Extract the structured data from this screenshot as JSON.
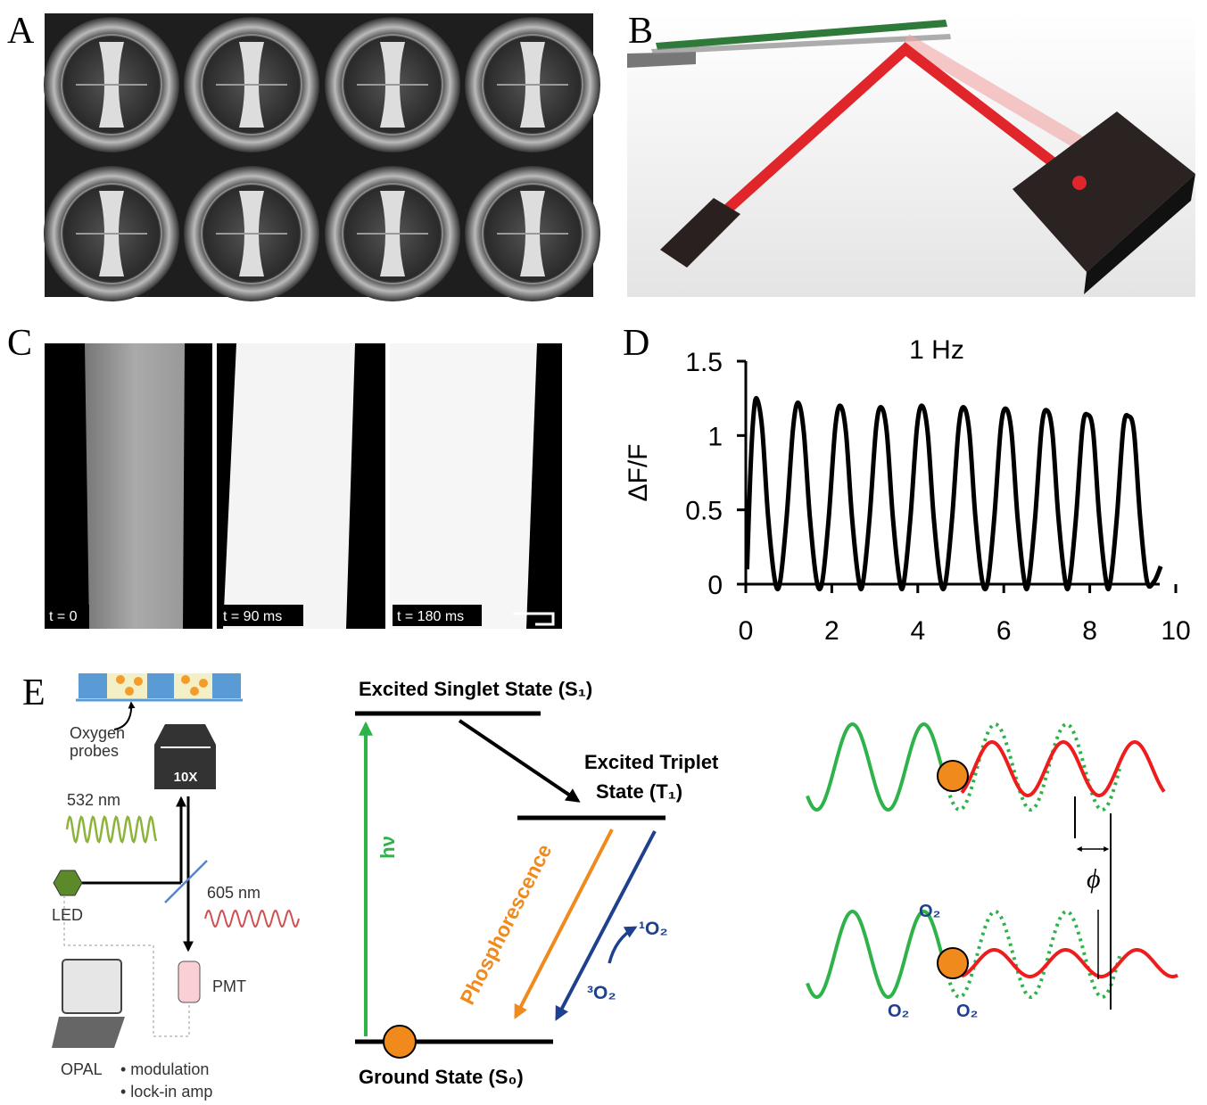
{
  "panel_labels": [
    "A",
    "B",
    "C",
    "D",
    "E"
  ],
  "panel_c": {
    "timestamps": [
      "t = 0",
      "t = 90 ms",
      "t = 180 ms"
    ]
  },
  "chart_data": {
    "type": "line",
    "title": "1 Hz",
    "y_label": "ΔF/F",
    "color": "#000000",
    "x": [
      0.03,
      0.1,
      0.17,
      0.25,
      0.38,
      0.52,
      0.68,
      0.8,
      0.95,
      1.1,
      1.22,
      1.35,
      1.49,
      1.65,
      1.78,
      1.93,
      2.08,
      2.2,
      2.33,
      2.47,
      2.63,
      2.73,
      2.88,
      3.03,
      3.15,
      3.28,
      3.42,
      3.58,
      3.68,
      3.83,
      3.98,
      4.1,
      4.23,
      4.37,
      4.53,
      4.65,
      4.8,
      4.95,
      5.07,
      5.2,
      5.34,
      5.5,
      5.63,
      5.78,
      5.93,
      6.05,
      6.18,
      6.32,
      6.48,
      6.58,
      6.73,
      6.88,
      7.0,
      7.13,
      7.27,
      7.43,
      7.53,
      7.68,
      7.83,
      7.95,
      8.08,
      8.22,
      8.38,
      8.48,
      8.63,
      8.78,
      8.9,
      9.03,
      9.17,
      9.33,
      9.5,
      9.65
    ],
    "values": [
      0.1,
      0.7,
      1.1,
      1.25,
      1.05,
      0.45,
      0.02,
      0.02,
      0.45,
      1.05,
      1.22,
      1.02,
      0.45,
      0.02,
      0.02,
      0.45,
      1.05,
      1.2,
      1.02,
      0.45,
      0.02,
      0.02,
      0.45,
      1.05,
      1.19,
      1.02,
      0.45,
      0.02,
      0.02,
      0.45,
      1.05,
      1.2,
      1.02,
      0.45,
      0.02,
      0.02,
      0.45,
      1.05,
      1.19,
      1.02,
      0.45,
      0.02,
      0.02,
      0.45,
      1.05,
      1.18,
      1.02,
      0.45,
      0.02,
      0.02,
      0.45,
      1.05,
      1.17,
      1.02,
      0.45,
      0.02,
      0.02,
      0.45,
      1.05,
      1.14,
      1.02,
      0.45,
      0.02,
      0.02,
      0.45,
      1.05,
      1.13,
      1.02,
      0.45,
      0.02,
      0.02,
      0.12
    ],
    "xlim": [
      0,
      10
    ],
    "xticks": [
      0,
      2,
      4,
      6,
      8,
      10
    ],
    "ylim": [
      0,
      1.5
    ],
    "yticks": [
      0,
      0.5,
      1,
      1.5
    ]
  },
  "panel_e": {
    "setup": {
      "probe_label": [
        "Oxygen",
        "probes"
      ],
      "objective": "10X",
      "excitation": "532 nm",
      "source": "LED",
      "emission": "605 nm",
      "detector": "PMT",
      "computer": "OPAL",
      "features": [
        "• modulation",
        "• lock-in amp"
      ]
    },
    "jablonski": {
      "singlet": "Excited Singlet State (S₁)",
      "triplet": [
        "Excited Triplet",
        "State (T₁)"
      ],
      "absorption": "hν",
      "emission": "Phosphorescence",
      "singlet_oxygen": "¹O₂",
      "triplet_oxygen": "³O₂",
      "ground": "Ground State (S₀)"
    },
    "phase": {
      "phase_symbol": "ϕ",
      "quencher_labels": [
        "O₂",
        "O₂",
        "O₂"
      ]
    }
  }
}
